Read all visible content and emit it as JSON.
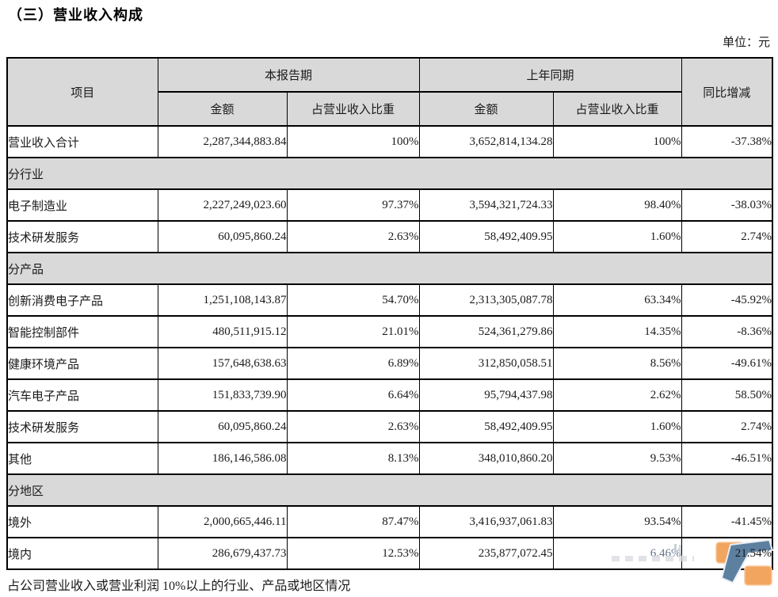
{
  "page": {
    "title": "（三）营业收入构成",
    "unit_label": "单位：元",
    "footer_note": "占公司营业收入或营业利润 10%以上的行业、产品或地区情况"
  },
  "table": {
    "headers": {
      "item": "项目",
      "current_period": "本报告期",
      "prior_period": "上年同期",
      "amount": "金额",
      "revenue_ratio": "占营业收入比重",
      "yoy_change": "同比增减"
    },
    "rows": [
      {
        "type": "data",
        "label": "营业收入合计",
        "cur_amount": "2,287,344,883.84",
        "cur_ratio": "100%",
        "prior_amount": "3,652,814,134.28",
        "prior_ratio": "100%",
        "yoy": "-37.38%"
      },
      {
        "type": "section",
        "label": "分行业"
      },
      {
        "type": "data",
        "label": "电子制造业",
        "cur_amount": "2,227,249,023.60",
        "cur_ratio": "97.37%",
        "prior_amount": "3,594,321,724.33",
        "prior_ratio": "98.40%",
        "yoy": "-38.03%"
      },
      {
        "type": "data",
        "label": "技术研发服务",
        "cur_amount": "60,095,860.24",
        "cur_ratio": "2.63%",
        "prior_amount": "58,492,409.95",
        "prior_ratio": "1.60%",
        "yoy": "2.74%"
      },
      {
        "type": "section",
        "label": "分产品"
      },
      {
        "type": "data",
        "label": "创新消费电子产品",
        "cur_amount": "1,251,108,143.87",
        "cur_ratio": "54.70%",
        "prior_amount": "2,313,305,087.78",
        "prior_ratio": "63.34%",
        "yoy": "-45.92%"
      },
      {
        "type": "data",
        "label": "智能控制部件",
        "cur_amount": "480,511,915.12",
        "cur_ratio": "21.01%",
        "prior_amount": "524,361,279.86",
        "prior_ratio": "14.35%",
        "yoy": "-8.36%"
      },
      {
        "type": "data",
        "label": "健康环境产品",
        "cur_amount": "157,648,638.63",
        "cur_ratio": "6.89%",
        "prior_amount": "312,850,058.51",
        "prior_ratio": "8.56%",
        "yoy": "-49.61%"
      },
      {
        "type": "data",
        "label": "汽车电子产品",
        "cur_amount": "151,833,739.90",
        "cur_ratio": "6.64%",
        "prior_amount": "95,794,437.98",
        "prior_ratio": "2.62%",
        "yoy": "58.50%"
      },
      {
        "type": "data",
        "label": "技术研发服务",
        "cur_amount": "60,095,860.24",
        "cur_ratio": "2.63%",
        "prior_amount": "58,492,409.95",
        "prior_ratio": "1.60%",
        "yoy": "2.74%"
      },
      {
        "type": "data",
        "label": "其他",
        "cur_amount": "186,146,586.08",
        "cur_ratio": "8.13%",
        "prior_amount": "348,010,860.20",
        "prior_ratio": "9.53%",
        "yoy": "-46.51%"
      },
      {
        "type": "section",
        "label": "分地区"
      },
      {
        "type": "data",
        "label": "境外",
        "cur_amount": "2,000,665,446.11",
        "cur_ratio": "87.47%",
        "prior_amount": "3,416,937,061.83",
        "prior_ratio": "93.54%",
        "yoy": "-41.45%"
      },
      {
        "type": "data",
        "label": "境内",
        "cur_amount": "286,679,437.73",
        "cur_ratio": "12.53%",
        "prior_amount": "235,877,072.45",
        "prior_ratio": "6.46%",
        "yoy": "21.54%",
        "watermarked": true
      }
    ]
  },
  "colors": {
    "header_bg": "#d9d9d9",
    "border": "#000000",
    "text": "#1a1a1a",
    "watermark_tinted_text": "#64748c",
    "logo_orange": "#f2a55f",
    "logo_orange_stroke": "#f7c897",
    "logo_blue": "#5d80a0",
    "logo_blue_stroke": "#e9eef3"
  },
  "watermark": {
    "icon": "orange-blue-corner-logo"
  }
}
